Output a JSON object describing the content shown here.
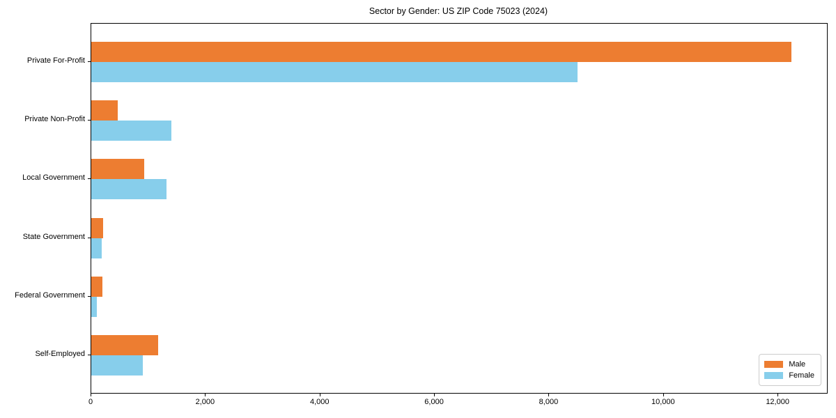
{
  "title": "Sector by Gender: US ZIP Code 75023 (2024)",
  "chart_data": {
    "type": "bar",
    "orientation": "horizontal",
    "title": "Sector by Gender: US ZIP Code 75023 (2024)",
    "categories": [
      "Private For-Profit",
      "Private Non-Profit",
      "Local Government",
      "State Government",
      "Federal Government",
      "Self-Employed"
    ],
    "series": [
      {
        "name": "Male",
        "color": "#ed7d31",
        "values": [
          12230,
          460,
          930,
          210,
          200,
          1170
        ]
      },
      {
        "name": "Female",
        "color": "#87ceeb",
        "values": [
          8490,
          1400,
          1310,
          185,
          95,
          905
        ]
      }
    ],
    "xlabel": "",
    "ylabel": "",
    "xlim": [
      0,
      12850
    ],
    "xticks": [
      0,
      2000,
      4000,
      6000,
      8000,
      10000,
      12000
    ],
    "xtick_labels": [
      "0",
      "2,000",
      "4,000",
      "6,000",
      "8,000",
      "10,000",
      "12,000"
    ],
    "grid": false,
    "legend_position": "lower right",
    "background_color": "#ffffff",
    "spine_color": "#000000"
  }
}
